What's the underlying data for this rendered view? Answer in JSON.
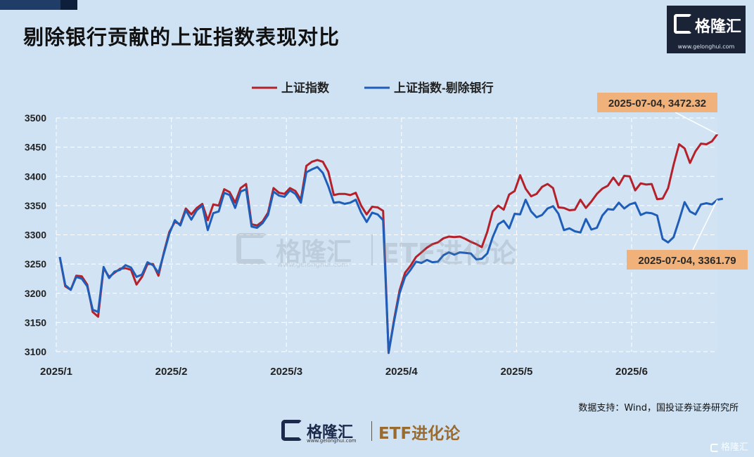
{
  "header": {
    "title": "剔除银行贡献的上证指数表现对比"
  },
  "logo": {
    "brand": "格隆汇",
    "site": "www.gelonghui.com"
  },
  "footer": {
    "source": "数据支持：Wind，国投证券证券研究所",
    "brand1": "格隆汇",
    "brand1_site": "www.gelonghui.com",
    "brand2": "ETF进化论",
    "corner": "格隆汇"
  },
  "watermark": {
    "text1": "格隆汇",
    "site": "www.gelonghui.com",
    "text2": "ETF进化论"
  },
  "colors": {
    "series1": "#b5212a",
    "series2": "#1f5eb8",
    "callout_bg": "#f0b27a"
  },
  "chart_data": {
    "type": "line",
    "legend_placement": "top-center",
    "grid": true,
    "ylim": [
      3100,
      3500
    ],
    "yticks": [
      "3100",
      "3150",
      "3200",
      "3250",
      "3300",
      "3350",
      "3400",
      "3450",
      "3500"
    ],
    "xticks": [
      "2025/1",
      "2025/2",
      "2025/3",
      "2025/4",
      "2025/5",
      "2025/6"
    ],
    "series": [
      {
        "name": "上证指数",
        "color": "#b5212a",
        "values": [
          3262,
          3212,
          3206,
          3230,
          3229,
          3215,
          3168,
          3160,
          3243,
          3228,
          3235,
          3242,
          3243,
          3240,
          3215,
          3228,
          3250,
          3250,
          3230,
          3270,
          3305,
          3322,
          3318,
          3345,
          3335,
          3346,
          3353,
          3325,
          3352,
          3350,
          3378,
          3373,
          3355,
          3380,
          3387,
          3318,
          3316,
          3323,
          3338,
          3380,
          3372,
          3370,
          3380,
          3375,
          3360,
          3418,
          3425,
          3428,
          3425,
          3408,
          3368,
          3370,
          3370,
          3368,
          3372,
          3350,
          3335,
          3348,
          3347,
          3341,
          3098,
          3155,
          3205,
          3235,
          3247,
          3262,
          3270,
          3278,
          3284,
          3287,
          3294,
          3297,
          3296,
          3297,
          3293,
          3288,
          3284,
          3279,
          3305,
          3340,
          3350,
          3343,
          3369,
          3375,
          3402,
          3379,
          3366,
          3370,
          3382,
          3387,
          3380,
          3347,
          3346,
          3342,
          3343,
          3360,
          3346,
          3357,
          3370,
          3379,
          3384,
          3398,
          3385,
          3401,
          3400,
          3376,
          3388,
          3386,
          3387,
          3361,
          3362,
          3380,
          3420,
          3455,
          3448,
          3423,
          3443,
          3456,
          3455,
          3460,
          3472.32
        ]
      },
      {
        "name": "上证指数-剔除银行",
        "color": "#1f5eb8",
        "values": [
          3262,
          3214,
          3206,
          3228,
          3225,
          3212,
          3172,
          3168,
          3245,
          3226,
          3237,
          3240,
          3248,
          3244,
          3228,
          3232,
          3253,
          3248,
          3235,
          3268,
          3302,
          3325,
          3316,
          3342,
          3326,
          3342,
          3350,
          3308,
          3337,
          3340,
          3372,
          3368,
          3346,
          3374,
          3378,
          3314,
          3312,
          3320,
          3334,
          3374,
          3367,
          3365,
          3376,
          3370,
          3355,
          3407,
          3412,
          3416,
          3406,
          3383,
          3355,
          3356,
          3353,
          3355,
          3360,
          3338,
          3322,
          3338,
          3335,
          3325,
          3098,
          3152,
          3200,
          3228,
          3240,
          3254,
          3252,
          3257,
          3253,
          3254,
          3265,
          3270,
          3266,
          3270,
          3269,
          3268,
          3258,
          3259,
          3268,
          3296,
          3318,
          3324,
          3311,
          3336,
          3335,
          3360,
          3340,
          3330,
          3334,
          3345,
          3349,
          3336,
          3308,
          3311,
          3306,
          3304,
          3327,
          3309,
          3312,
          3333,
          3344,
          3343,
          3355,
          3345,
          3352,
          3355,
          3334,
          3338,
          3337,
          3333,
          3293,
          3287,
          3296,
          3325,
          3356,
          3340,
          3335,
          3352,
          3354,
          3352,
          3360,
          3361.79
        ]
      }
    ],
    "annotations": [
      {
        "text": "2025-07-04, 3472.32",
        "series": 0
      },
      {
        "text": "2025-07-04, 3361.79",
        "series": 1
      }
    ]
  }
}
